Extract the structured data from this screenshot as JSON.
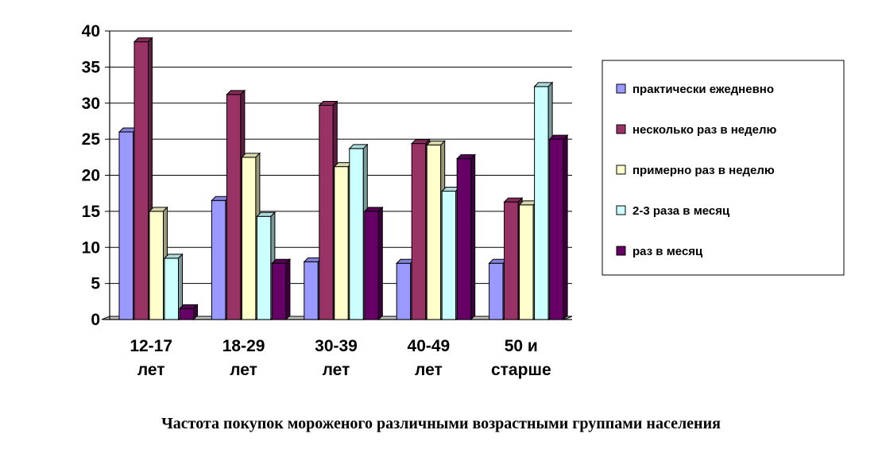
{
  "chart_data": {
    "type": "bar",
    "categories": [
      [
        "12-17",
        "лет"
      ],
      [
        "18-29",
        "лет"
      ],
      [
        "30-39",
        "лет"
      ],
      [
        "40-49",
        "лет"
      ],
      [
        "50 и",
        "старше"
      ]
    ],
    "series": [
      {
        "name": "практически ежедневно",
        "color": "#9999ff",
        "values": [
          26,
          16.5,
          8,
          7.8,
          7.8
        ]
      },
      {
        "name": "несколько раз в неделю",
        "color": "#993366",
        "values": [
          38.5,
          31.2,
          29.7,
          24.4,
          16.3
        ]
      },
      {
        "name": "примерно раз в неделю",
        "color": "#ffffcc",
        "values": [
          15,
          22.5,
          21.2,
          24.2,
          15.9
        ]
      },
      {
        "name": "2-3 раза в месяц",
        "color": "#ccffff",
        "values": [
          8.5,
          14.3,
          23.7,
          17.8,
          32.3
        ]
      },
      {
        "name": "раз в месяц",
        "color": "#660066",
        "values": [
          1.5,
          7.8,
          15,
          22.3,
          25
        ]
      }
    ],
    "yticks": [
      0,
      5,
      10,
      15,
      20,
      25,
      30,
      35,
      40
    ],
    "ylim": [
      0,
      40
    ],
    "grid": true,
    "legend_position": "right",
    "caption": "Частота покупок мороженого различными возрастными группами населения"
  }
}
